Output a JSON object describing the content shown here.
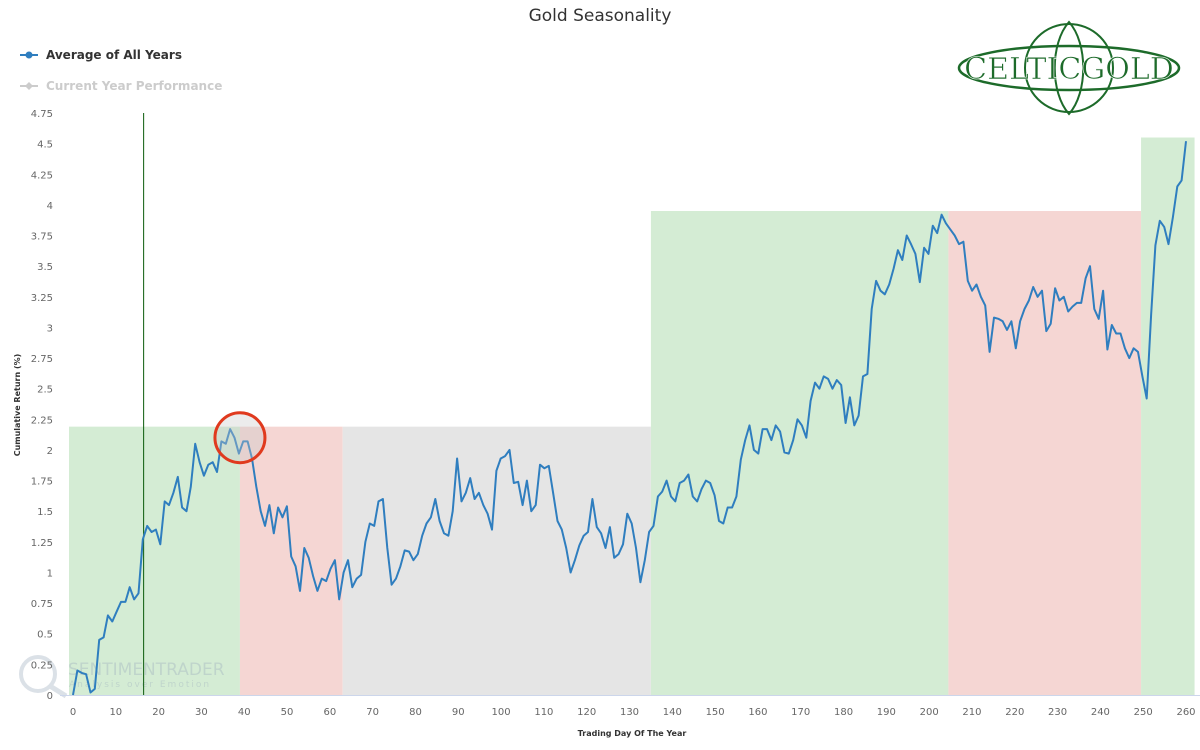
{
  "chart_data": {
    "type": "line",
    "title": "Gold Seasonality",
    "xlabel": "Trading Day Of The Year",
    "ylabel": "Cumulative Return (%)",
    "xlim": [
      -1,
      262
    ],
    "ylim": [
      0,
      4.75
    ],
    "x_ticks": [
      0,
      10,
      20,
      30,
      40,
      50,
      60,
      70,
      80,
      90,
      100,
      110,
      120,
      130,
      140,
      150,
      160,
      170,
      180,
      190,
      200,
      210,
      220,
      230,
      240,
      250,
      260
    ],
    "y_ticks": [
      0,
      0.25,
      0.5,
      0.75,
      1,
      1.25,
      1.5,
      1.75,
      2,
      2.25,
      2.5,
      2.75,
      3,
      3.25,
      3.5,
      3.75,
      4,
      4.25,
      4.5,
      4.75
    ],
    "legend": [
      {
        "name": "Average of All Years",
        "color": "#2f7ebf",
        "active": true
      },
      {
        "name": "Current Year Performance",
        "color": "#cccccc",
        "active": false
      }
    ],
    "legend_position": "top-left",
    "series": [
      {
        "name": "Average of All Years",
        "x_start": 0,
        "x_end": 260,
        "values": [
          0,
          0.2,
          0.18,
          0.17,
          0.02,
          0.05,
          0.45,
          0.47,
          0.65,
          0.6,
          0.68,
          0.76,
          0.76,
          0.88,
          0.78,
          0.83,
          1.27,
          1.38,
          1.33,
          1.35,
          1.23,
          1.58,
          1.55,
          1.65,
          1.78,
          1.53,
          1.5,
          1.7,
          2.05,
          1.9,
          1.79,
          1.88,
          1.9,
          1.82,
          2.07,
          2.05,
          2.17,
          2.1,
          1.97,
          2.07,
          2.07,
          1.93,
          1.7,
          1.5,
          1.38,
          1.55,
          1.32,
          1.53,
          1.45,
          1.54,
          1.13,
          1.05,
          0.85,
          1.2,
          1.12,
          0.97,
          0.85,
          0.95,
          0.93,
          1.03,
          1.1,
          0.78,
          1.0,
          1.1,
          0.88,
          0.95,
          0.98,
          1.25,
          1.4,
          1.38,
          1.58,
          1.6,
          1.2,
          0.9,
          0.95,
          1.05,
          1.18,
          1.17,
          1.1,
          1.15,
          1.3,
          1.4,
          1.45,
          1.6,
          1.42,
          1.32,
          1.3,
          1.5,
          1.93,
          1.58,
          1.65,
          1.77,
          1.6,
          1.65,
          1.55,
          1.48,
          1.35,
          1.83,
          1.93,
          1.95,
          2.0,
          1.73,
          1.74,
          1.55,
          1.75,
          1.5,
          1.55,
          1.88,
          1.85,
          1.87,
          1.65,
          1.42,
          1.35,
          1.2,
          1.0,
          1.1,
          1.22,
          1.3,
          1.33,
          1.6,
          1.37,
          1.32,
          1.2,
          1.37,
          1.12,
          1.15,
          1.23,
          1.48,
          1.4,
          1.2,
          0.92,
          1.1,
          1.33,
          1.38,
          1.62,
          1.66,
          1.75,
          1.62,
          1.58,
          1.73,
          1.75,
          1.8,
          1.62,
          1.58,
          1.68,
          1.75,
          1.73,
          1.63,
          1.42,
          1.4,
          1.53,
          1.53,
          1.62,
          1.92,
          2.08,
          2.2,
          2.0,
          1.97,
          2.17,
          2.17,
          2.08,
          2.2,
          2.15,
          1.98,
          1.97,
          2.08,
          2.25,
          2.2,
          2.1,
          2.4,
          2.55,
          2.5,
          2.6,
          2.58,
          2.5,
          2.57,
          2.53,
          2.22,
          2.43,
          2.2,
          2.28,
          2.6,
          2.62,
          3.15,
          3.38,
          3.3,
          3.27,
          3.35,
          3.48,
          3.63,
          3.55,
          3.75,
          3.68,
          3.6,
          3.37,
          3.65,
          3.6,
          3.83,
          3.77,
          3.92,
          3.85,
          3.8,
          3.75,
          3.68,
          3.7,
          3.38,
          3.3,
          3.35,
          3.25,
          3.18,
          2.8,
          3.08,
          3.07,
          3.05,
          2.98,
          3.05,
          2.83,
          3.05,
          3.15,
          3.22,
          3.33,
          3.25,
          3.3,
          2.97,
          3.03,
          3.32,
          3.22,
          3.25,
          3.13,
          3.17,
          3.2,
          3.2,
          3.4,
          3.5,
          3.15,
          3.07,
          3.3,
          2.82,
          3.02,
          2.95,
          2.95,
          2.83,
          2.75,
          2.83,
          2.8,
          2.6,
          2.42,
          3.1,
          3.67,
          3.87,
          3.82,
          3.68,
          3.9,
          4.15,
          4.2,
          4.52
        ]
      }
    ],
    "bands": [
      {
        "from": -1,
        "to": 39,
        "top": 2.19,
        "color": "#d4ecd4"
      },
      {
        "from": 39,
        "to": 63,
        "top": 2.19,
        "color": "#f5d6d3"
      },
      {
        "from": 63,
        "to": 135,
        "top": 2.19,
        "color": "#e5e5e5"
      },
      {
        "from": 135,
        "to": 204.5,
        "top": 3.95,
        "color": "#d4ecd4"
      },
      {
        "from": 204.5,
        "to": 249.5,
        "top": 3.95,
        "color": "#f5d6d3"
      },
      {
        "from": 249.5,
        "to": 262,
        "top": 4.55,
        "color": "#d4ecd4"
      }
    ],
    "marker_line_day": 16.5,
    "highlight_circle": {
      "day": 39,
      "value": 2.1,
      "color": "#e03a1e"
    },
    "grid": false
  },
  "watermark": {
    "name": "SENTIMENTRADER",
    "tagline": "Analysis over Emotion"
  },
  "logo": {
    "text": "CELTICGOLD"
  }
}
